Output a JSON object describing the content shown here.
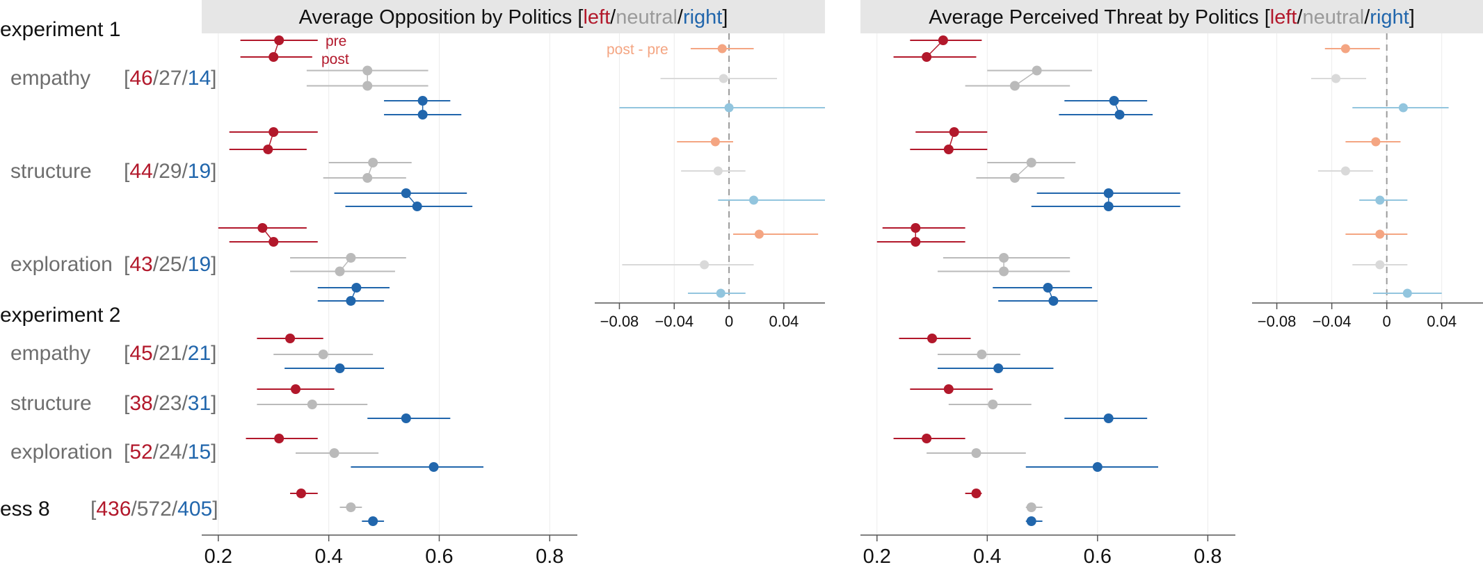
{
  "colors": {
    "left": "#b2182b",
    "neutral": "#bababa",
    "right": "#2166ac",
    "left_light": "#f4a582",
    "neutral_light": "#d9d9d9",
    "right_light": "#92c5de",
    "label_gray": "#6e6e6e",
    "header_bg": "#e6e6e6"
  },
  "words": {
    "left": "left",
    "neutral": "neutral",
    "right": "right"
  },
  "legend": {
    "pre": "pre",
    "post": "post",
    "diff": "post - pre"
  },
  "groups": [
    {
      "label": "experiment 1",
      "rows": [
        {
          "label": "empathy",
          "counts": [
            "46",
            "27",
            "14"
          ],
          "prepost": true
        },
        {
          "label": "structure",
          "counts": [
            "44",
            "29",
            "19"
          ],
          "prepost": true
        },
        {
          "label": "exploration",
          "counts": [
            "43",
            "25",
            "19"
          ],
          "prepost": true
        }
      ]
    },
    {
      "label": "experiment 2",
      "rows": [
        {
          "label": "empathy",
          "counts": [
            "45",
            "21",
            "21"
          ],
          "prepost": false
        },
        {
          "label": "structure",
          "counts": [
            "38",
            "23",
            "31"
          ],
          "prepost": false
        },
        {
          "label": "exploration",
          "counts": [
            "52",
            "24",
            "15"
          ],
          "prepost": false
        }
      ]
    },
    {
      "label": "",
      "rows": [
        {
          "label": "ess 8",
          "counts": [
            "436",
            "572",
            "405"
          ],
          "prepost": false
        }
      ]
    }
  ],
  "chart_data": [
    {
      "type": "scatter",
      "title_prefix": "Average Opposition by Politics [",
      "title_suffix": "]",
      "xlim": [
        0.17,
        0.85
      ],
      "xticks": [
        "0.2",
        "0.4",
        "0.6",
        "0.8"
      ],
      "xtick_values": [
        0.2,
        0.4,
        0.6,
        0.8
      ],
      "series": [
        {
          "row": "experiment 1 / empathy",
          "points": [
            {
              "party": "left",
              "phase": "pre",
              "est": 0.31,
              "lo": 0.24,
              "hi": 0.38
            },
            {
              "party": "left",
              "phase": "post",
              "est": 0.3,
              "lo": 0.24,
              "hi": 0.37
            },
            {
              "party": "neutral",
              "phase": "pre",
              "est": 0.47,
              "lo": 0.36,
              "hi": 0.58
            },
            {
              "party": "neutral",
              "phase": "post",
              "est": 0.47,
              "lo": 0.36,
              "hi": 0.58
            },
            {
              "party": "right",
              "phase": "pre",
              "est": 0.57,
              "lo": 0.5,
              "hi": 0.62
            },
            {
              "party": "right",
              "phase": "post",
              "est": 0.57,
              "lo": 0.5,
              "hi": 0.64
            }
          ]
        },
        {
          "row": "experiment 1 / structure",
          "points": [
            {
              "party": "left",
              "phase": "pre",
              "est": 0.3,
              "lo": 0.22,
              "hi": 0.38
            },
            {
              "party": "left",
              "phase": "post",
              "est": 0.29,
              "lo": 0.22,
              "hi": 0.36
            },
            {
              "party": "neutral",
              "phase": "pre",
              "est": 0.48,
              "lo": 0.4,
              "hi": 0.55
            },
            {
              "party": "neutral",
              "phase": "post",
              "est": 0.47,
              "lo": 0.39,
              "hi": 0.54
            },
            {
              "party": "right",
              "phase": "pre",
              "est": 0.54,
              "lo": 0.41,
              "hi": 0.65
            },
            {
              "party": "right",
              "phase": "post",
              "est": 0.56,
              "lo": 0.43,
              "hi": 0.66
            }
          ]
        },
        {
          "row": "experiment 1 / exploration",
          "points": [
            {
              "party": "left",
              "phase": "pre",
              "est": 0.28,
              "lo": 0.2,
              "hi": 0.36
            },
            {
              "party": "left",
              "phase": "post",
              "est": 0.3,
              "lo": 0.22,
              "hi": 0.38
            },
            {
              "party": "neutral",
              "phase": "pre",
              "est": 0.44,
              "lo": 0.33,
              "hi": 0.54
            },
            {
              "party": "neutral",
              "phase": "post",
              "est": 0.42,
              "lo": 0.33,
              "hi": 0.52
            },
            {
              "party": "right",
              "phase": "pre",
              "est": 0.45,
              "lo": 0.38,
              "hi": 0.51
            },
            {
              "party": "right",
              "phase": "post",
              "est": 0.44,
              "lo": 0.38,
              "hi": 0.5
            }
          ]
        },
        {
          "row": "experiment 2 / empathy",
          "points": [
            {
              "party": "left",
              "est": 0.33,
              "lo": 0.27,
              "hi": 0.39
            },
            {
              "party": "neutral",
              "est": 0.39,
              "lo": 0.3,
              "hi": 0.48
            },
            {
              "party": "right",
              "est": 0.42,
              "lo": 0.32,
              "hi": 0.5
            }
          ]
        },
        {
          "row": "experiment 2 / structure",
          "points": [
            {
              "party": "left",
              "est": 0.34,
              "lo": 0.27,
              "hi": 0.41
            },
            {
              "party": "neutral",
              "est": 0.37,
              "lo": 0.27,
              "hi": 0.47
            },
            {
              "party": "right",
              "est": 0.54,
              "lo": 0.47,
              "hi": 0.62
            }
          ]
        },
        {
          "row": "experiment 2 / exploration",
          "points": [
            {
              "party": "left",
              "est": 0.31,
              "lo": 0.25,
              "hi": 0.38
            },
            {
              "party": "neutral",
              "est": 0.41,
              "lo": 0.34,
              "hi": 0.49
            },
            {
              "party": "right",
              "est": 0.59,
              "lo": 0.44,
              "hi": 0.68
            }
          ]
        },
        {
          "row": "ess 8",
          "points": [
            {
              "party": "left",
              "est": 0.35,
              "lo": 0.33,
              "hi": 0.38
            },
            {
              "party": "neutral",
              "est": 0.44,
              "lo": 0.42,
              "hi": 0.46
            },
            {
              "party": "right",
              "est": 0.48,
              "lo": 0.46,
              "hi": 0.5
            }
          ]
        }
      ]
    },
    {
      "type": "scatter",
      "title": "post - pre",
      "xlim": [
        -0.098,
        0.07
      ],
      "xticks": [
        "−0.08",
        "−0.04",
        "0",
        "0.04"
      ],
      "xtick_values": [
        -0.08,
        -0.04,
        0,
        0.04
      ],
      "series": [
        {
          "row": "experiment 1 / empathy",
          "points": [
            {
              "party": "left",
              "est": -0.005,
              "lo": -0.028,
              "hi": 0.018
            },
            {
              "party": "neutral",
              "est": -0.004,
              "lo": -0.05,
              "hi": 0.035
            },
            {
              "party": "right",
              "est": 0.0,
              "lo": -0.08,
              "hi": 0.07
            }
          ]
        },
        {
          "row": "experiment 1 / structure",
          "points": [
            {
              "party": "left",
              "est": -0.01,
              "lo": -0.038,
              "hi": 0.003
            },
            {
              "party": "neutral",
              "est": -0.008,
              "lo": -0.035,
              "hi": 0.012
            },
            {
              "party": "right",
              "est": 0.018,
              "lo": -0.008,
              "hi": 0.07
            }
          ]
        },
        {
          "row": "experiment 1 / exploration",
          "points": [
            {
              "party": "left",
              "est": 0.022,
              "lo": 0.003,
              "hi": 0.065
            },
            {
              "party": "neutral",
              "est": -0.018,
              "lo": -0.078,
              "hi": 0.018
            },
            {
              "party": "right",
              "est": -0.006,
              "lo": -0.03,
              "hi": 0.012
            }
          ]
        }
      ]
    },
    {
      "type": "scatter",
      "title_prefix": "Average Perceived Threat by Politics [",
      "title_suffix": "]",
      "xlim": [
        0.17,
        0.85
      ],
      "xticks": [
        "0.2",
        "0.4",
        "0.6",
        "0.8"
      ],
      "xtick_values": [
        0.2,
        0.4,
        0.6,
        0.8
      ],
      "series": [
        {
          "row": "experiment 1 / empathy",
          "points": [
            {
              "party": "left",
              "phase": "pre",
              "est": 0.32,
              "lo": 0.26,
              "hi": 0.39
            },
            {
              "party": "left",
              "phase": "post",
              "est": 0.29,
              "lo": 0.23,
              "hi": 0.38
            },
            {
              "party": "neutral",
              "phase": "pre",
              "est": 0.49,
              "lo": 0.4,
              "hi": 0.59
            },
            {
              "party": "neutral",
              "phase": "post",
              "est": 0.45,
              "lo": 0.36,
              "hi": 0.55
            },
            {
              "party": "right",
              "phase": "pre",
              "est": 0.63,
              "lo": 0.54,
              "hi": 0.69
            },
            {
              "party": "right",
              "phase": "post",
              "est": 0.64,
              "lo": 0.53,
              "hi": 0.7
            }
          ]
        },
        {
          "row": "experiment 1 / structure",
          "points": [
            {
              "party": "left",
              "phase": "pre",
              "est": 0.34,
              "lo": 0.27,
              "hi": 0.4
            },
            {
              "party": "left",
              "phase": "post",
              "est": 0.33,
              "lo": 0.26,
              "hi": 0.4
            },
            {
              "party": "neutral",
              "phase": "pre",
              "est": 0.48,
              "lo": 0.4,
              "hi": 0.56
            },
            {
              "party": "neutral",
              "phase": "post",
              "est": 0.45,
              "lo": 0.38,
              "hi": 0.54
            },
            {
              "party": "right",
              "phase": "pre",
              "est": 0.62,
              "lo": 0.49,
              "hi": 0.75
            },
            {
              "party": "right",
              "phase": "post",
              "est": 0.62,
              "lo": 0.48,
              "hi": 0.75
            }
          ]
        },
        {
          "row": "experiment 1 / exploration",
          "points": [
            {
              "party": "left",
              "phase": "pre",
              "est": 0.27,
              "lo": 0.21,
              "hi": 0.36
            },
            {
              "party": "left",
              "phase": "post",
              "est": 0.27,
              "lo": 0.2,
              "hi": 0.36
            },
            {
              "party": "neutral",
              "phase": "pre",
              "est": 0.43,
              "lo": 0.32,
              "hi": 0.55
            },
            {
              "party": "neutral",
              "phase": "post",
              "est": 0.43,
              "lo": 0.31,
              "hi": 0.55
            },
            {
              "party": "right",
              "phase": "pre",
              "est": 0.51,
              "lo": 0.41,
              "hi": 0.59
            },
            {
              "party": "right",
              "phase": "post",
              "est": 0.52,
              "lo": 0.42,
              "hi": 0.6
            }
          ]
        },
        {
          "row": "experiment 2 / empathy",
          "points": [
            {
              "party": "left",
              "est": 0.3,
              "lo": 0.24,
              "hi": 0.37
            },
            {
              "party": "neutral",
              "est": 0.39,
              "lo": 0.31,
              "hi": 0.46
            },
            {
              "party": "right",
              "est": 0.42,
              "lo": 0.31,
              "hi": 0.52
            }
          ]
        },
        {
          "row": "experiment 2 / structure",
          "points": [
            {
              "party": "left",
              "est": 0.33,
              "lo": 0.26,
              "hi": 0.41
            },
            {
              "party": "neutral",
              "est": 0.41,
              "lo": 0.33,
              "hi": 0.48
            },
            {
              "party": "right",
              "est": 0.62,
              "lo": 0.54,
              "hi": 0.69
            }
          ]
        },
        {
          "row": "experiment 2 / exploration",
          "points": [
            {
              "party": "left",
              "est": 0.29,
              "lo": 0.23,
              "hi": 0.36
            },
            {
              "party": "neutral",
              "est": 0.38,
              "lo": 0.29,
              "hi": 0.47
            },
            {
              "party": "right",
              "est": 0.6,
              "lo": 0.47,
              "hi": 0.71
            }
          ]
        },
        {
          "row": "ess 8",
          "points": [
            {
              "party": "left",
              "est": 0.38,
              "lo": 0.36,
              "hi": 0.39
            },
            {
              "party": "neutral",
              "est": 0.48,
              "lo": 0.47,
              "hi": 0.5
            },
            {
              "party": "right",
              "est": 0.48,
              "lo": 0.47,
              "hi": 0.5
            }
          ]
        }
      ]
    },
    {
      "type": "scatter",
      "xlim": [
        -0.098,
        0.07
      ],
      "xticks": [
        "−0.08",
        "−0.04",
        "0",
        "0.04"
      ],
      "xtick_values": [
        -0.08,
        -0.04,
        0,
        0.04
      ],
      "series": [
        {
          "row": "experiment 1 / empathy",
          "points": [
            {
              "party": "left",
              "est": -0.03,
              "lo": -0.045,
              "hi": -0.005
            },
            {
              "party": "neutral",
              "est": -0.037,
              "lo": -0.055,
              "hi": -0.015
            },
            {
              "party": "right",
              "est": 0.012,
              "lo": -0.025,
              "hi": 0.045
            }
          ]
        },
        {
          "row": "experiment 1 / structure",
          "points": [
            {
              "party": "left",
              "est": -0.008,
              "lo": -0.03,
              "hi": 0.01
            },
            {
              "party": "neutral",
              "est": -0.03,
              "lo": -0.05,
              "hi": -0.01
            },
            {
              "party": "right",
              "est": -0.005,
              "lo": -0.02,
              "hi": 0.015
            }
          ]
        },
        {
          "row": "experiment 1 / exploration",
          "points": [
            {
              "party": "left",
              "est": -0.005,
              "lo": -0.03,
              "hi": 0.015
            },
            {
              "party": "neutral",
              "est": -0.005,
              "lo": -0.025,
              "hi": 0.015
            },
            {
              "party": "right",
              "est": 0.015,
              "lo": -0.01,
              "hi": 0.04
            }
          ]
        }
      ]
    }
  ]
}
